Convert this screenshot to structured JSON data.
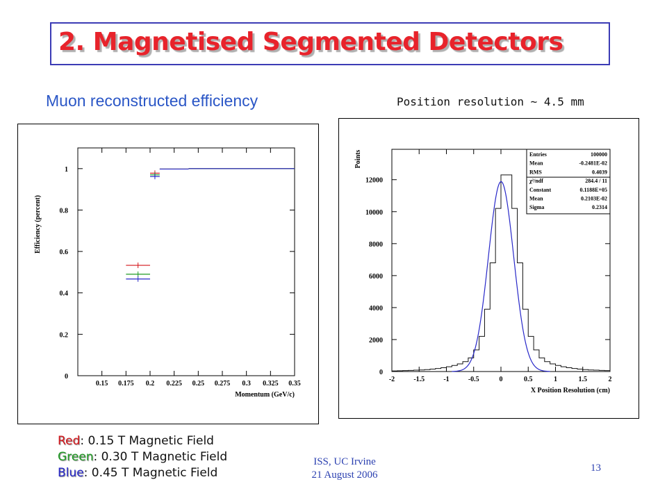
{
  "slide": {
    "title": "2. Magnetised Segmented Detectors",
    "left_caption": "Muon reconstructed efficiency",
    "right_caption": "Position resolution ~ 4.5 mm",
    "legend": [
      {
        "key": "Red",
        "text": ": 0.15 T Magnetic Field",
        "color": "#d4141a"
      },
      {
        "key": "Green",
        "text": ": 0.30 T Magnetic Field",
        "color": "#1e9a22"
      },
      {
        "key": "Blue",
        "text": ": 0.45 T Magnetic Field",
        "color": "#2727c8"
      }
    ],
    "footer": {
      "line1": "ISS, UC Irvine",
      "line2": "21 August 2006"
    },
    "page_number": "13",
    "colors": {
      "title": "#e8232b",
      "title_border": "#3b3bb5",
      "caption": "#2a56c6",
      "footer": "#2a3fb0"
    }
  },
  "chart_data": [
    {
      "type": "scatter",
      "xlabel": "Momentum (GeV/c)",
      "ylabel": "Efficiency (percent)",
      "xlim": [
        0.125,
        0.35
      ],
      "ylim": [
        0,
        1.1
      ],
      "xticks": [
        "0.15",
        "0.175",
        "0.2",
        "0.225",
        "0.25",
        "0.275",
        "0.3",
        "0.325",
        "0.35"
      ],
      "xtick_values": [
        0.15,
        0.175,
        0.2,
        0.225,
        0.25,
        0.275,
        0.3,
        0.325,
        0.35
      ],
      "yticks": [
        "0",
        "0.2",
        "0.4",
        "0.6",
        "0.8",
        "1"
      ],
      "ytick_values": [
        0,
        0.2,
        0.4,
        0.6,
        0.8,
        1
      ],
      "series": [
        {
          "color": "#d4141a",
          "points": [
            {
              "x0": 0.175,
              "x1": 0.2,
              "y": 0.53
            },
            {
              "x0": 0.2,
              "x1": 0.21,
              "y": 0.975
            },
            {
              "x0": 0.21,
              "x1": 0.24,
              "y": 0.998
            },
            {
              "x0": 0.24,
              "x1": 0.35,
              "y": 1.0
            }
          ]
        },
        {
          "color": "#1e9a22",
          "points": [
            {
              "x0": 0.175,
              "x1": 0.2,
              "y": 0.49
            },
            {
              "x0": 0.2,
              "x1": 0.21,
              "y": 0.97
            },
            {
              "x0": 0.21,
              "x1": 0.24,
              "y": 0.998
            },
            {
              "x0": 0.24,
              "x1": 0.35,
              "y": 1.0
            }
          ]
        },
        {
          "color": "#2727c8",
          "points": [
            {
              "x0": 0.175,
              "x1": 0.2,
              "y": 0.47
            },
            {
              "x0": 0.2,
              "x1": 0.21,
              "y": 0.965
            },
            {
              "x0": 0.21,
              "x1": 0.24,
              "y": 0.998
            },
            {
              "x0": 0.24,
              "x1": 0.35,
              "y": 1.0
            }
          ]
        }
      ]
    },
    {
      "type": "bar",
      "xlabel": "X Position Resolution (cm)",
      "ylabel": "Points",
      "xlim": [
        -2,
        2
      ],
      "ylim": [
        0,
        13900
      ],
      "xticks": [
        "-2",
        "-1.5",
        "-1",
        "-0.5",
        "0",
        "0.5",
        "1",
        "1.5",
        "2"
      ],
      "xtick_values": [
        -2,
        -1.5,
        -1,
        -0.5,
        0,
        0.5,
        1,
        1.5,
        2
      ],
      "yticks": [
        "0",
        "2000",
        "4000",
        "6000",
        "8000",
        "10000",
        "12000"
      ],
      "ytick_values": [
        0,
        2000,
        4000,
        6000,
        8000,
        10000,
        12000
      ],
      "bins": {
        "low": -2.0,
        "width": 0.1,
        "counts": [
          40,
          50,
          60,
          70,
          85,
          100,
          120,
          150,
          190,
          240,
          300,
          380,
          480,
          620,
          850,
          1350,
          2200,
          3900,
          6800,
          10200,
          12300,
          12300,
          10200,
          6800,
          3900,
          2200,
          1350,
          850,
          620,
          480,
          380,
          300,
          240,
          190,
          150,
          120,
          100,
          85,
          70,
          60
        ]
      },
      "fit": {
        "type": "gaussian",
        "constant": 11880,
        "mean": 0.0021,
        "sigma": 0.2314,
        "color": "#2727c8"
      },
      "stats": [
        {
          "label": "Entries",
          "value": "100000"
        },
        {
          "label": "Mean",
          "value": "-0.2481E-02"
        },
        {
          "label": "RMS",
          "value": "0.4039"
        },
        {
          "label": "χ²/ndf",
          "value": "284.4  /   11"
        },
        {
          "label": "Constant",
          "value": "0.1188E+05"
        },
        {
          "label": "Mean",
          "value": "0.2103E-02"
        },
        {
          "label": "Sigma",
          "value": "0.2314"
        }
      ]
    }
  ]
}
